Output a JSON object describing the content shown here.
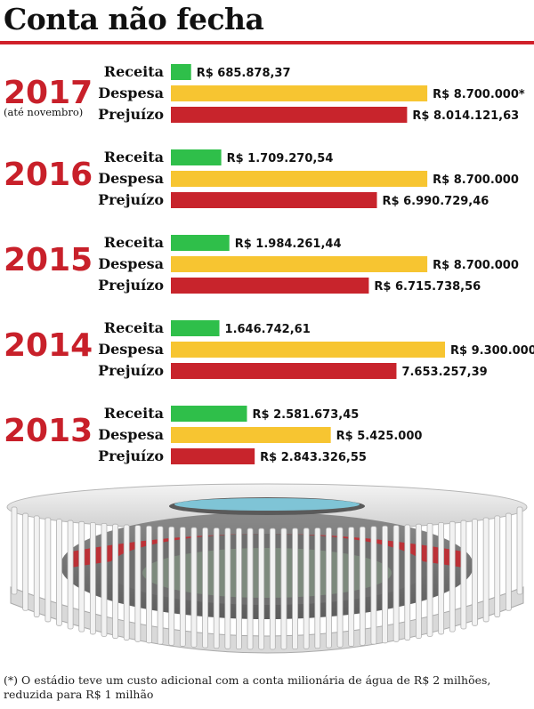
{
  "title": "Conta não fecha",
  "footnote": "(*) O estádio teve um custo adicional com a conta milionária de água de R$ 2 milhões, reduzida para R$ 1 milhão",
  "colors": {
    "receita": "#2fbf4a",
    "despesa": "#f7c531",
    "prejuizo": "#c8242c",
    "accent": "#d0202a"
  },
  "chart_data": {
    "type": "bar",
    "orientation": "horizontal",
    "title": "Conta não fecha",
    "row_labels": [
      "Receita",
      "Despesa",
      "Prejuízo"
    ],
    "groups": [
      {
        "year": "2017",
        "note": "(até novembro)",
        "values": [
          685878.37,
          8700000,
          8014121.63
        ],
        "labels": [
          "R$ 685.878,37",
          "R$ 8.700.000*",
          "R$ 8.014.121,63"
        ]
      },
      {
        "year": "2016",
        "note": "",
        "values": [
          1709270.54,
          8700000,
          6990729.46
        ],
        "labels": [
          "R$ 1.709.270,54",
          "R$ 8.700.000",
          "R$ 6.990.729,46"
        ]
      },
      {
        "year": "2015",
        "note": "",
        "values": [
          1984261.44,
          8700000,
          6715738.56
        ],
        "labels": [
          "R$ 1.984.261,44",
          "R$ 8.700.000",
          "R$ 6.715.738,56"
        ]
      },
      {
        "year": "2014",
        "note": "",
        "values": [
          1646742.61,
          9300000,
          7653257.39
        ],
        "labels": [
          "1.646.742,61",
          "R$ 9.300.000",
          "7.653.257,39"
        ]
      },
      {
        "year": "2013",
        "note": "",
        "values": [
          2581673.45,
          5425000,
          2843326.55
        ],
        "labels": [
          "R$ 2.581.673,45",
          "R$ 5.425.000",
          "R$ 2.843.326,55"
        ]
      }
    ]
  }
}
